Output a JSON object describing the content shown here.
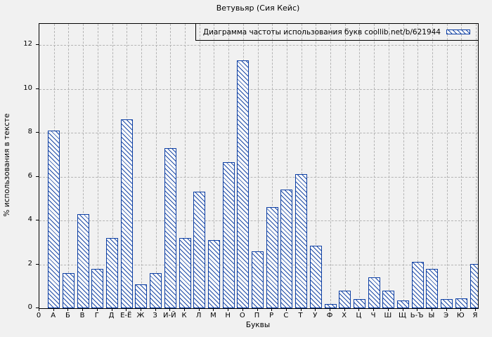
{
  "chart_data": {
    "type": "bar",
    "title": "Ветувьяр (Сия Кейс)",
    "legend": "Диаграмма частоты использования букв coollib.net/b/621944",
    "xlabel": "Буквы",
    "ylabel": "% использования в тексте",
    "x_origin_label": "0",
    "categories": [
      "А",
      "Б",
      "В",
      "Г",
      "Д",
      "Е-Ё",
      "Ж",
      "З",
      "И-Й",
      "К",
      "Л",
      "М",
      "Н",
      "О",
      "П",
      "Р",
      "С",
      "Т",
      "У",
      "Ф",
      "Х",
      "Ц",
      "Ч",
      "Ш",
      "Щ",
      "Ь-Ъ",
      "Ы",
      "Э",
      "Ю",
      "Я"
    ],
    "values": [
      8.1,
      1.6,
      4.3,
      1.8,
      3.2,
      8.6,
      1.1,
      1.6,
      7.3,
      3.2,
      5.3,
      3.1,
      6.65,
      11.3,
      2.6,
      4.6,
      5.4,
      6.1,
      2.85,
      0.2,
      0.8,
      0.4,
      1.4,
      0.8,
      0.35,
      2.1,
      1.8,
      0.4,
      0.45,
      2.0
    ],
    "yticks": [
      0,
      2,
      4,
      6,
      8,
      10,
      12
    ],
    "ylim": [
      0,
      12.96
    ],
    "grid": true,
    "legend_position": "top-right",
    "bar_hatch_style": "diagonal-backslash",
    "colors": {
      "bar_border": "#0d3fa4",
      "bar_hatch": "#1c4aa8",
      "bar_fill": "#fbfbfb",
      "grid": "#b4b4b4",
      "axis": "#000000",
      "background": "#f1f1f1",
      "text": "#000000"
    }
  }
}
